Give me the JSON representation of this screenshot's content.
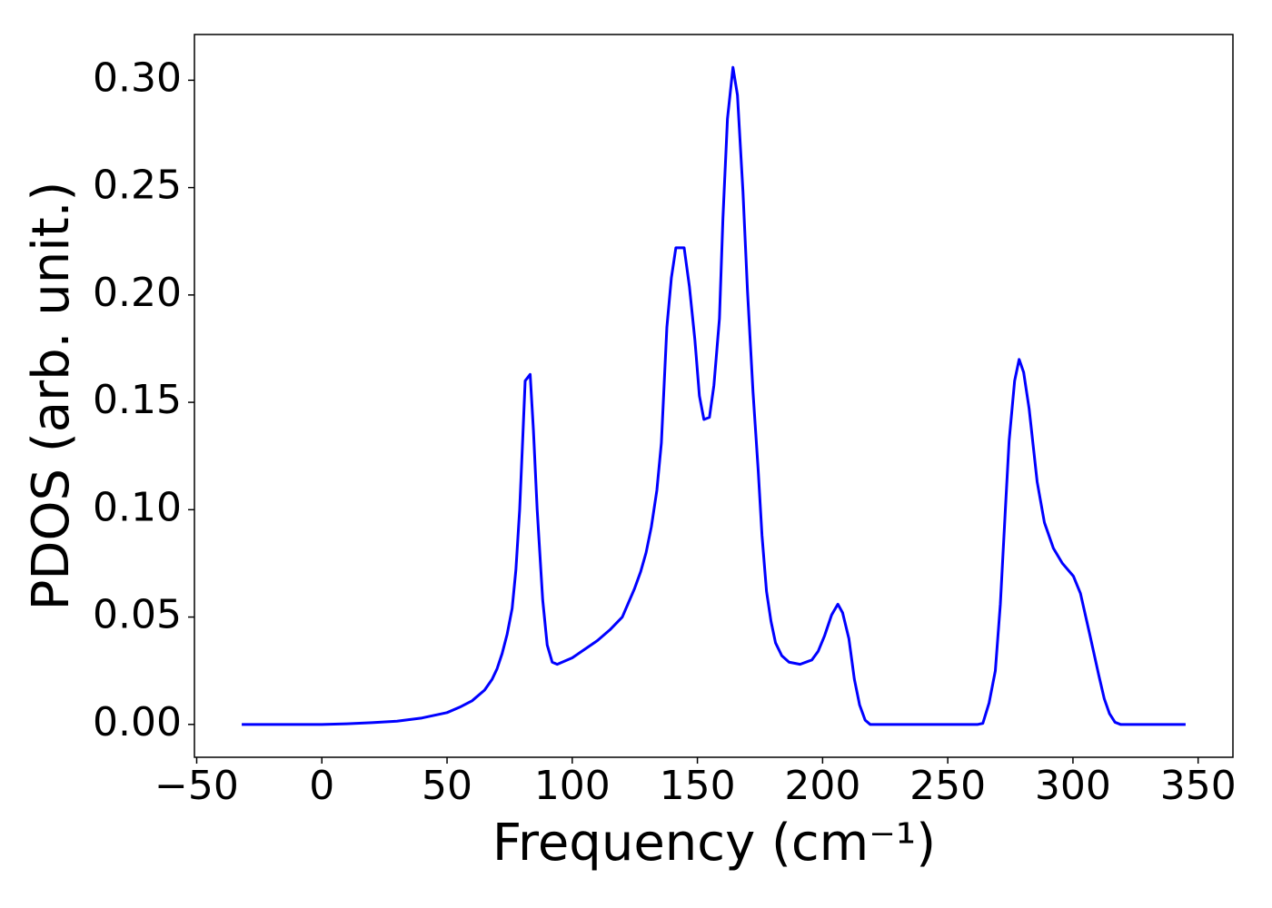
{
  "chart_data": {
    "type": "line",
    "xlabel": "Frequency (cm⁻¹)",
    "ylabel": "PDOS (arb. unit.)",
    "color": "#0000ff",
    "xlim": [
      -50.9,
      363.9
    ],
    "ylim": [
      -0.0153,
      0.3213
    ],
    "xticks": [
      {
        "value": -50,
        "label": "−50"
      },
      0,
      50,
      100,
      150,
      200,
      250,
      300,
      350
    ],
    "yticks": [
      {
        "value": 0,
        "label": "0.00"
      },
      {
        "value": 0.05,
        "label": "0.05"
      },
      {
        "value": 0.1,
        "label": "0.10"
      },
      {
        "value": 0.15,
        "label": "0.15"
      },
      {
        "value": 0.2,
        "label": "0.20"
      },
      {
        "value": 0.25,
        "label": "0.25"
      },
      {
        "value": 0.3,
        "label": "0.30"
      }
    ],
    "x": [
      -32,
      0,
      10,
      20,
      30,
      40,
      50,
      55,
      60,
      65,
      68,
      70,
      72,
      74,
      76,
      77.5,
      79,
      80.3,
      81.2,
      83.2,
      84.5,
      86,
      88.2,
      90,
      92,
      94,
      100,
      110,
      115,
      120,
      124.8,
      127.3,
      129.5,
      131.6,
      133.8,
      135.6,
      137.8,
      139.6,
      141.4,
      144.7,
      146.8,
      149,
      150.8,
      152.6,
      154.8,
      156.6,
      158.8,
      160.2,
      162,
      164.2,
      166,
      168.2,
      170,
      172.2,
      174.3,
      175.8,
      177.6,
      179.4,
      181.2,
      183.7,
      186.6,
      191,
      195.7,
      198.2,
      200.7,
      203.6,
      206.1,
      208,
      210.5,
      212.7,
      214.8,
      217,
      219,
      262,
      264,
      266.5,
      269,
      271,
      273,
      274.5,
      276.7,
      278.5,
      280.3,
      282.5,
      285.7,
      288.6,
      292.2,
      295.8,
      300.2,
      303,
      306.7,
      310.3,
      312.5,
      314.6,
      316.8,
      319,
      345
    ],
    "values": [
      0,
      0,
      0.0003,
      0.0008,
      0.0015,
      0.003,
      0.0055,
      0.008,
      0.011,
      0.016,
      0.021,
      0.026,
      0.033,
      0.042,
      0.054,
      0.072,
      0.1,
      0.135,
      0.16,
      0.163,
      0.137,
      0.1,
      0.058,
      0.037,
      0.029,
      0.028,
      0.031,
      0.039,
      0.044,
      0.05,
      0.063,
      0.071,
      0.08,
      0.092,
      0.109,
      0.131,
      0.185,
      0.208,
      0.222,
      0.222,
      0.204,
      0.179,
      0.153,
      0.142,
      0.143,
      0.158,
      0.189,
      0.236,
      0.282,
      0.306,
      0.293,
      0.248,
      0.202,
      0.155,
      0.118,
      0.088,
      0.062,
      0.048,
      0.038,
      0.032,
      0.029,
      0.028,
      0.03,
      0.034,
      0.041,
      0.051,
      0.056,
      0.052,
      0.04,
      0.021,
      0.009,
      0.002,
      0,
      0,
      0.0005,
      0.01,
      0.025,
      0.056,
      0.1,
      0.132,
      0.16,
      0.17,
      0.164,
      0.147,
      0.113,
      0.094,
      0.082,
      0.075,
      0.069,
      0.061,
      0.042,
      0.023,
      0.012,
      0.005,
      0.001,
      0,
      0
    ]
  }
}
